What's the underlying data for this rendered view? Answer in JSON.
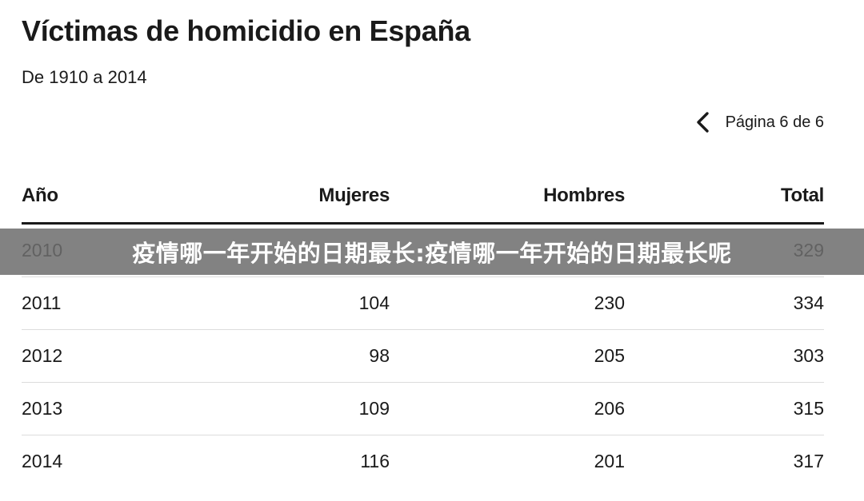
{
  "header": {
    "title": "Víctimas de homicidio en España",
    "subtitle": "De 1910 a 2014"
  },
  "pagination": {
    "prev_icon": "chevron-left-icon",
    "label": "Página 6 de 6"
  },
  "table": {
    "columns": [
      "Año",
      "Mujeres",
      "Hombres",
      "Total"
    ],
    "rows": [
      [
        "2010",
        "",
        "",
        "329"
      ],
      [
        "2011",
        "104",
        "230",
        "334"
      ],
      [
        "2012",
        "98",
        "205",
        "303"
      ],
      [
        "2013",
        "109",
        "206",
        "315"
      ],
      [
        "2014",
        "116",
        "201",
        "317"
      ]
    ]
  },
  "overlay": {
    "text": "疫情哪一年开始的日期最长:疫情哪一年开始的日期最长呢"
  },
  "colors": {
    "text": "#1a1a1a",
    "divider": "#dcdcdc",
    "overlay": "#6e6e6e"
  }
}
